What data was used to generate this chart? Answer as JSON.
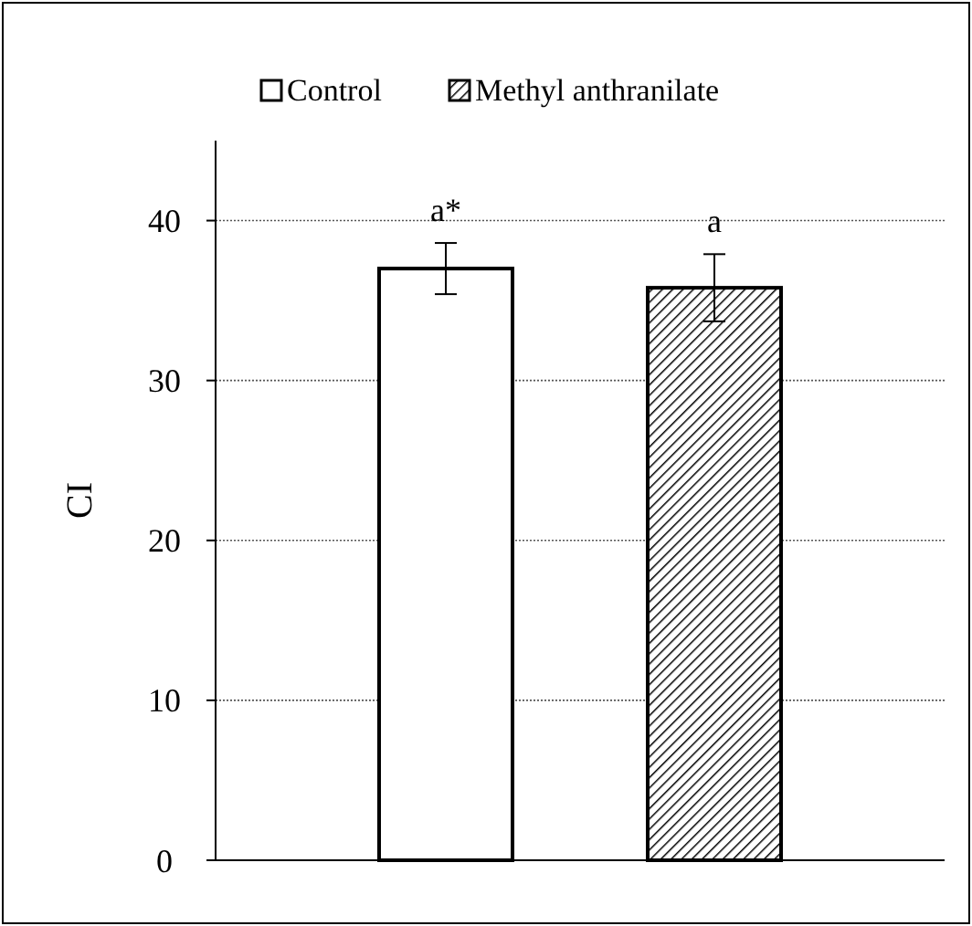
{
  "chart_data": {
    "type": "bar",
    "ylabel": "CI",
    "categories": [
      null
    ],
    "series": [
      {
        "name": "Control",
        "color": "#ffffff",
        "values": [
          37.0
        ],
        "errors": [
          1.6
        ]
      },
      {
        "name": "Methyl anthranilate",
        "color": "#000000",
        "values": [
          35.8
        ],
        "errors": [
          2.1
        ]
      }
    ],
    "annotations": [
      "a*",
      "a"
    ],
    "ylim": [
      0,
      45
    ],
    "yticks": [
      0,
      10,
      20,
      30,
      40
    ],
    "grid": "y",
    "legend": "top"
  }
}
